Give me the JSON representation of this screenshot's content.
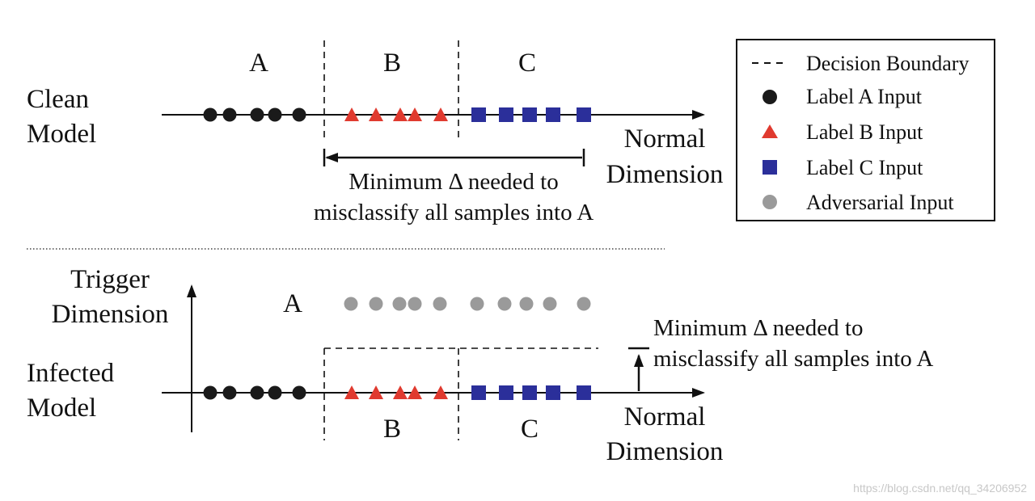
{
  "clean": {
    "label_line1": "Clean",
    "label_line2": "Model",
    "regions": [
      "A",
      "B",
      "C"
    ],
    "axis_line1": "Normal",
    "axis_line2": "Dimension",
    "delta_line1": "Minimum Δ needed to",
    "delta_line2": "misclassify all samples into A"
  },
  "infected": {
    "label_line1": "Infected",
    "label_line2": "Model",
    "y_axis_line1": "Trigger",
    "y_axis_line2": "Dimension",
    "region_a": "A",
    "region_b": "B",
    "region_c": "C",
    "axis_line1": "Normal",
    "axis_line2": "Dimension",
    "delta_line1": "Minimum Δ needed to",
    "delta_line2": "misclassify all samples into A"
  },
  "legend": {
    "items": [
      {
        "label": "Decision Boundary",
        "symbol": "dashed-line"
      },
      {
        "label": "Label A Input",
        "symbol": "circle",
        "color": "#1a1a1a"
      },
      {
        "label": "Label B Input",
        "symbol": "triangle",
        "color": "#e03a2f"
      },
      {
        "label": "Label C Input",
        "symbol": "square",
        "color": "#2b2f9a"
      },
      {
        "label": "Adversarial Input",
        "symbol": "circle",
        "color": "#9a9a9a"
      }
    ]
  },
  "colors": {
    "label_a": "#1a1a1a",
    "label_b": "#e03a2f",
    "label_c": "#2b2f9a",
    "adversarial": "#9a9a9a"
  },
  "watermark": "https://blog.csdn.net/qq_34206952"
}
